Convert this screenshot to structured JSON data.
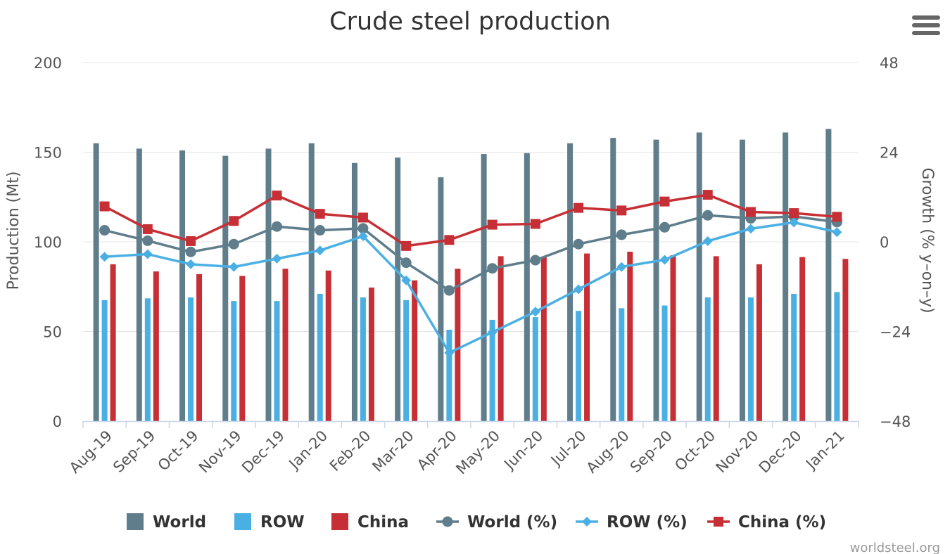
{
  "chart_data": {
    "type": "bar",
    "title": "Crude steel production",
    "credit": "worldsteel.org",
    "categories": [
      "Aug-19",
      "Sep-19",
      "Oct-19",
      "Nov-19",
      "Dec-19",
      "Jan-20",
      "Feb-20",
      "Mar-20",
      "Apr-20",
      "May-20",
      "Jun-20",
      "Jul-20",
      "Aug-20",
      "Sep-20",
      "Oct-20",
      "Nov-20",
      "Dec-20",
      "Jan-21"
    ],
    "y_left": {
      "label": "Production (Mt)",
      "min": 0,
      "max": 200,
      "ticks": [
        "0",
        "50",
        "100",
        "150",
        "200"
      ]
    },
    "y_right": {
      "label": "Growth (% y–on–y)",
      "min": -48,
      "max": 48,
      "ticks": [
        "−48",
        "−24",
        "0",
        "24",
        "48"
      ]
    },
    "grid": true,
    "legend_position": "bottom",
    "colors": {
      "world": "#607d8b",
      "row": "#4ab0e4",
      "china": "#c62f35"
    },
    "bar_series": [
      {
        "name": "World",
        "color": "#607d8b",
        "values": [
          155,
          152,
          151,
          148,
          152,
          155,
          144,
          147,
          136,
          149,
          149.5,
          155,
          158,
          157,
          161,
          157,
          161,
          163
        ]
      },
      {
        "name": "ROW",
        "color": "#4ab0e4",
        "values": [
          67.5,
          68.5,
          69,
          67,
          67,
          71,
          69,
          67.5,
          51,
          56.5,
          58,
          61.5,
          63,
          64.5,
          69,
          69,
          71,
          72
        ]
      },
      {
        "name": "China",
        "color": "#c62f35",
        "values": [
          87.5,
          83.5,
          82,
          81,
          85,
          84,
          74.5,
          78.5,
          85,
          92,
          91.5,
          93.5,
          94.5,
          92.5,
          92,
          87.5,
          91.5,
          90.5
        ]
      }
    ],
    "line_series": [
      {
        "name": "World (%)",
        "color": "#607d8b",
        "marker": "circle",
        "values": [
          3.1,
          0.3,
          -2.7,
          -0.6,
          4.1,
          3.1,
          3.6,
          -5.6,
          -13.0,
          -7.1,
          -4.9,
          -0.6,
          1.9,
          3.9,
          7.1,
          6.3,
          6.8,
          5.3
        ]
      },
      {
        "name": "ROW (%)",
        "color": "#4ab0e4",
        "marker": "diamond",
        "values": [
          -4.0,
          -3.3,
          -6.0,
          -6.7,
          -4.5,
          -2.3,
          1.5,
          -10.3,
          -29.7,
          -24.2,
          -18.7,
          -12.7,
          -6.7,
          -4.8,
          0.2,
          3.5,
          5.2,
          2.6
        ]
      },
      {
        "name": "China (%)",
        "color": "#c62f35",
        "marker": "square",
        "values": [
          9.5,
          3.4,
          0.2,
          5.6,
          12.4,
          7.5,
          6.5,
          -1.1,
          0.5,
          4.6,
          4.8,
          9.1,
          8.4,
          10.8,
          12.6,
          8.0,
          7.7,
          6.7
        ]
      }
    ]
  }
}
